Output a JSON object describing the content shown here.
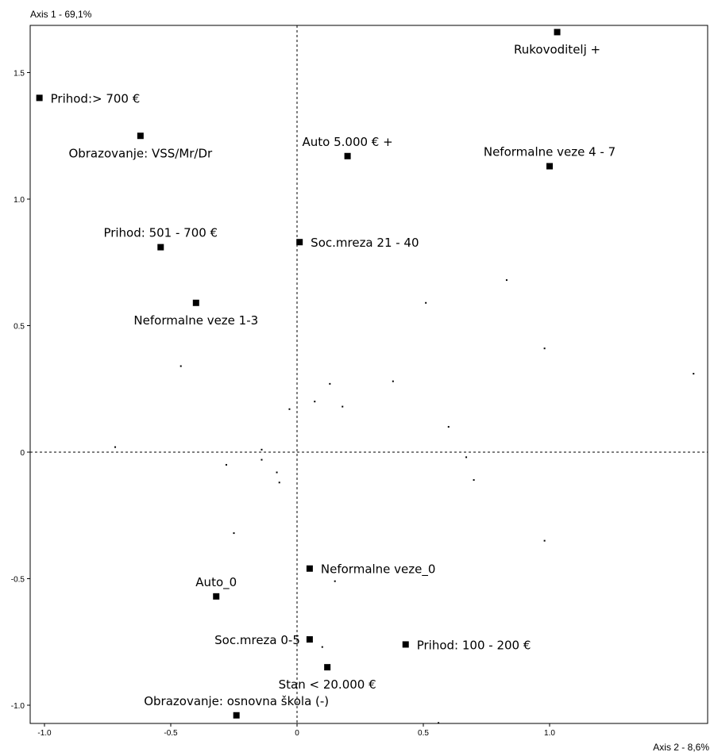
{
  "chart_data": {
    "type": "scatter",
    "title": "",
    "xlabel": "Axis 2 - 8,6%",
    "ylabel": "Axis 1 - 69,1%",
    "xlim": [
      -1.05,
      1.6
    ],
    "ylim": [
      -1.08,
      1.68
    ],
    "x_ticks": [
      {
        "value": -1.0,
        "label": "-1.0"
      },
      {
        "value": -0.5,
        "label": "-0.5"
      },
      {
        "value": 0.0,
        "label": "0"
      },
      {
        "value": 0.5,
        "label": "0.5"
      },
      {
        "value": 1.0,
        "label": "1.0"
      }
    ],
    "y_ticks": [
      {
        "value": -1.0,
        "label": "-1.0"
      },
      {
        "value": -0.5,
        "label": "-0.5"
      },
      {
        "value": 0.0,
        "label": "0"
      },
      {
        "value": 0.5,
        "label": "0.5"
      },
      {
        "value": 1.0,
        "label": "1.0"
      },
      {
        "value": 1.5,
        "label": "1.5"
      }
    ],
    "grid": false,
    "zero_lines": true,
    "labeled_points": [
      {
        "x": 1.03,
        "y": 1.66,
        "label": "Rukovoditelj +",
        "pos": "below"
      },
      {
        "x": -1.02,
        "y": 1.4,
        "label": "Prihod:> 700 €",
        "pos": "right"
      },
      {
        "x": -0.62,
        "y": 1.25,
        "label": "Obrazovanje: VSS/Mr/Dr",
        "pos": "below"
      },
      {
        "x": 0.2,
        "y": 1.17,
        "label": "Auto 5.000 € +",
        "pos": "above"
      },
      {
        "x": 1.0,
        "y": 1.13,
        "label": "Neformalne veze 4 - 7",
        "pos": "above"
      },
      {
        "x": -0.54,
        "y": 0.81,
        "label": "Prihod: 501 - 700 €",
        "pos": "above"
      },
      {
        "x": 0.01,
        "y": 0.83,
        "label": "Soc.mreza 21 - 40",
        "pos": "right"
      },
      {
        "x": -0.4,
        "y": 0.59,
        "label": "Neformalne veze 1-3",
        "pos": "below"
      },
      {
        "x": 0.05,
        "y": -0.46,
        "label": "Neformalne veze_0",
        "pos": "right"
      },
      {
        "x": -0.32,
        "y": -0.57,
        "label": "Auto_0",
        "pos": "above"
      },
      {
        "x": 0.05,
        "y": -0.74,
        "label": "Soc.mreza 0-5",
        "pos": "left"
      },
      {
        "x": 0.43,
        "y": -0.76,
        "label": "Prihod: 100 - 200 €",
        "pos": "right"
      },
      {
        "x": 0.12,
        "y": -0.85,
        "label": "Stan < 20.000 €",
        "pos": "below"
      },
      {
        "x": -0.24,
        "y": -1.04,
        "label": "Obrazovanje: osnovna škola (-)",
        "pos": "above"
      }
    ],
    "small_points": [
      {
        "x": 0.83,
        "y": 0.68
      },
      {
        "x": 0.51,
        "y": 0.59
      },
      {
        "x": 0.98,
        "y": 0.41
      },
      {
        "x": 1.57,
        "y": 0.31
      },
      {
        "x": -0.46,
        "y": 0.34
      },
      {
        "x": 0.38,
        "y": 0.28
      },
      {
        "x": 0.13,
        "y": 0.27
      },
      {
        "x": 0.07,
        "y": 0.2
      },
      {
        "x": 0.18,
        "y": 0.18
      },
      {
        "x": -0.03,
        "y": 0.17
      },
      {
        "x": 0.6,
        "y": 0.1
      },
      {
        "x": -0.72,
        "y": 0.02
      },
      {
        "x": -0.14,
        "y": 0.01
      },
      {
        "x": -0.14,
        "y": -0.03
      },
      {
        "x": 0.67,
        "y": -0.02
      },
      {
        "x": -0.28,
        "y": -0.05
      },
      {
        "x": -0.08,
        "y": -0.08
      },
      {
        "x": 0.7,
        "y": -0.11
      },
      {
        "x": -0.07,
        "y": -0.12
      },
      {
        "x": -0.25,
        "y": -0.32
      },
      {
        "x": 0.98,
        "y": -0.35
      },
      {
        "x": 0.15,
        "y": -0.51
      },
      {
        "x": 0.1,
        "y": -0.77
      },
      {
        "x": 0.56,
        "y": -1.07
      }
    ]
  }
}
